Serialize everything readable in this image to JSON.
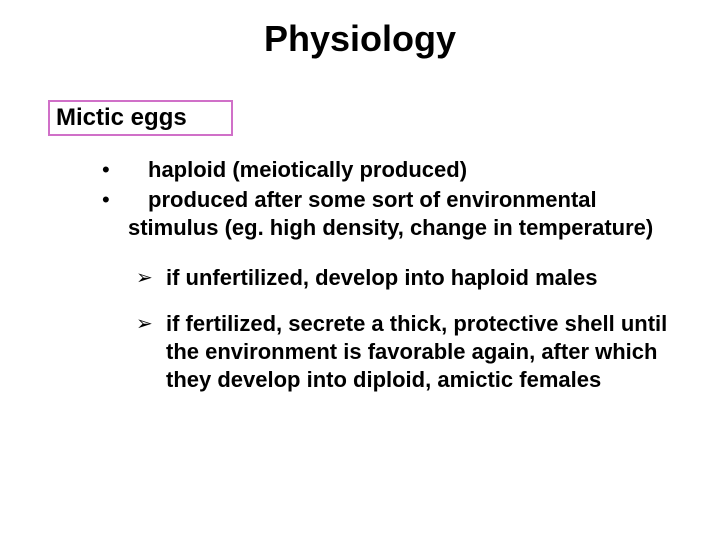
{
  "title": "Physiology",
  "subheading": "Mictic eggs",
  "bullets": [
    {
      "text": "haploid (meiotically produced)"
    },
    {
      "text": "produced after some sort of environmental",
      "cont": "stimulus (eg. high density, change in temperature)"
    }
  ],
  "arrows": [
    {
      "text": "if unfertilized, develop into haploid males"
    },
    {
      "text": "if fertilized, secrete a thick, protective shell until the environment is favorable again, after which they develop into diploid, amictic females"
    }
  ],
  "styles": {
    "title_fontsize": 36,
    "body_fontsize": 22,
    "box_border_color": "#d070c8",
    "text_color": "#000000",
    "background_color": "#ffffff"
  }
}
